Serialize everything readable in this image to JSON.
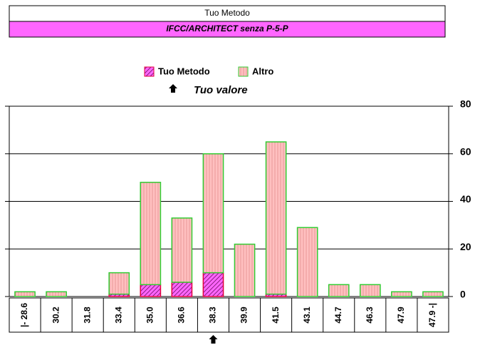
{
  "header": {
    "method": "Tuo Metodo",
    "group": "IFCC/ARCHITECT senza P-5-P"
  },
  "chart_data": {
    "type": "stacked_bar",
    "legend_marker_label": "Tuo valore",
    "categories": [
      "|- 28.6",
      "30.2",
      "31.8",
      "33.4",
      "35.0",
      "36.6",
      "38.3",
      "39.9",
      "41.5",
      "43.1",
      "44.7",
      "46.3",
      "47.9",
      "47.9 -|"
    ],
    "series": [
      {
        "name": "Tuo Metodo",
        "color": "#ff66ff",
        "edge": "#e0003c",
        "values": [
          0,
          0,
          0,
          1,
          5,
          6,
          10,
          0,
          1,
          0,
          0,
          0,
          0,
          0
        ]
      },
      {
        "name": "Altro",
        "color": "#ffc0c0",
        "edge": "#33cc33",
        "values": [
          2,
          2,
          0,
          9,
          43,
          27,
          50,
          22,
          64,
          29,
          5,
          5,
          2,
          2
        ]
      }
    ],
    "marker_category": 6,
    "ylim": [
      0,
      80
    ],
    "yticks": [
      0,
      20,
      40,
      60,
      80
    ],
    "grid": true
  }
}
